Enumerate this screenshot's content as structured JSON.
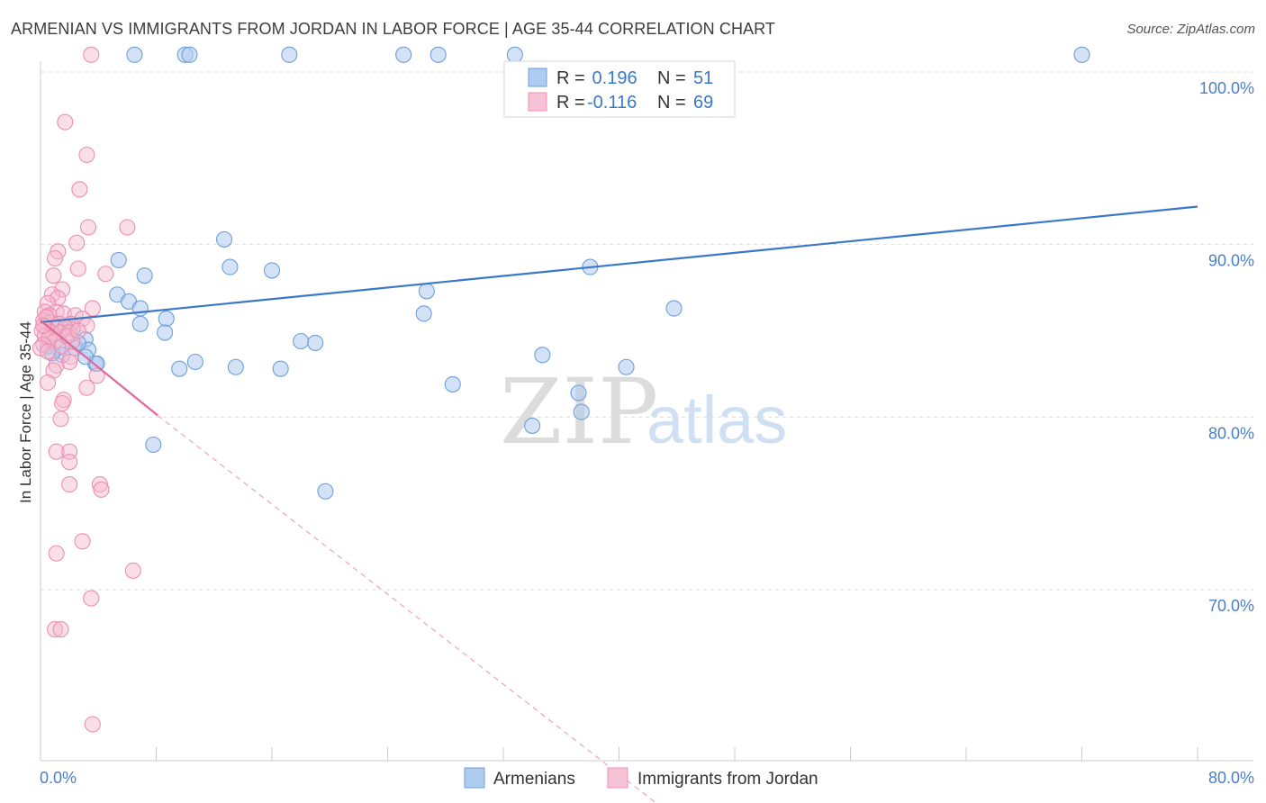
{
  "title": "ARMENIAN VS IMMIGRANTS FROM JORDAN IN LABOR FORCE | AGE 35-44 CORRELATION CHART",
  "source": "Source: ZipAtlas.com",
  "watermark": {
    "zip": "ZIP",
    "atlas": "atlas"
  },
  "colors": {
    "blue": "#3b78c8",
    "blue_fill": "#aecbf0",
    "pink": "#e0679a",
    "pink_fill": "#f6b8cd",
    "grid": "#dddddd",
    "axis_text": "#4a7fc9"
  },
  "legend": {
    "rows": [
      {
        "r_label": "R =",
        "r_value": " 0.196",
        "n_label": "N =",
        "n_value": "51"
      },
      {
        "r_label": "R =",
        "r_value": "-0.116",
        "n_label": "N =",
        "n_value": "69"
      }
    ]
  },
  "chart_data": {
    "type": "scatter",
    "title": "ARMENIAN VS IMMIGRANTS FROM JORDAN IN LABOR FORCE | AGE 35-44 CORRELATION CHART",
    "xlabel": "",
    "ylabel": "In Labor Force | Age 35-44",
    "xlim": [
      0,
      80
    ],
    "ylim": [
      60,
      100
    ],
    "x_tick_labels": [
      "0.0%",
      "80.0%"
    ],
    "y_ticks": [
      100,
      90,
      80,
      70
    ],
    "y_tick_labels": [
      "100.0%",
      "90.0%",
      "80.0%",
      "70.0%"
    ],
    "series": [
      {
        "name": "Armenians",
        "color": "#3b78c8",
        "r": 0.196,
        "n": 51,
        "trend": {
          "x": [
            0,
            80
          ],
          "y": [
            85.5,
            92.2
          ]
        },
        "points": [
          [
            6.5,
            101.0
          ],
          [
            10.0,
            101.0
          ],
          [
            10.3,
            101.0
          ],
          [
            17.2,
            101.0
          ],
          [
            25.1,
            101.0
          ],
          [
            27.5,
            101.0
          ],
          [
            32.8,
            101.0
          ],
          [
            72.0,
            101.0
          ],
          [
            12.7,
            90.3
          ],
          [
            13.1,
            88.7
          ],
          [
            5.4,
            89.1
          ],
          [
            7.2,
            88.2
          ],
          [
            16.0,
            88.5
          ],
          [
            26.7,
            87.3
          ],
          [
            38.0,
            88.7
          ],
          [
            5.3,
            87.1
          ],
          [
            6.1,
            86.7
          ],
          [
            6.9,
            86.3
          ],
          [
            6.9,
            85.4
          ],
          [
            8.7,
            85.7
          ],
          [
            8.6,
            84.9
          ],
          [
            26.5,
            86.0
          ],
          [
            43.8,
            86.3
          ],
          [
            1.0,
            85.2
          ],
          [
            1.6,
            85.1
          ],
          [
            2.2,
            85.1
          ],
          [
            3.1,
            84.5
          ],
          [
            18.0,
            84.4
          ],
          [
            19.0,
            84.3
          ],
          [
            0.5,
            84.1
          ],
          [
            1.2,
            84.0
          ],
          [
            2.4,
            84.0
          ],
          [
            3.3,
            83.9
          ],
          [
            1.5,
            83.6
          ],
          [
            3.8,
            83.1
          ],
          [
            3.9,
            83.1
          ],
          [
            3.1,
            83.5
          ],
          [
            9.6,
            82.8
          ],
          [
            10.7,
            83.2
          ],
          [
            13.5,
            82.9
          ],
          [
            16.6,
            82.8
          ],
          [
            34.7,
            83.6
          ],
          [
            40.5,
            82.9
          ],
          [
            28.5,
            81.9
          ],
          [
            37.2,
            81.4
          ],
          [
            37.4,
            80.3
          ],
          [
            34.0,
            79.5
          ],
          [
            7.8,
            78.4
          ],
          [
            19.7,
            75.7
          ],
          [
            0.8,
            83.7
          ],
          [
            2.6,
            84.3
          ]
        ]
      },
      {
        "name": "Immigrants from Jordan",
        "color": "#e0679a",
        "r": -0.116,
        "n": 69,
        "trend": {
          "x": [
            0,
            8.1
          ],
          "y": [
            85.6,
            80.1
          ]
        },
        "trend_dashed": {
          "x": [
            8.1,
            44.3
          ],
          "y": [
            80.1,
            56.5
          ]
        },
        "points": [
          [
            3.5,
            101.0
          ],
          [
            1.7,
            97.1
          ],
          [
            3.2,
            95.2
          ],
          [
            2.7,
            93.2
          ],
          [
            3.3,
            91.0
          ],
          [
            6.0,
            91.0
          ],
          [
            2.5,
            90.1
          ],
          [
            1.2,
            89.6
          ],
          [
            1.0,
            89.2
          ],
          [
            2.6,
            88.6
          ],
          [
            4.5,
            88.3
          ],
          [
            0.9,
            88.2
          ],
          [
            1.5,
            87.4
          ],
          [
            0.8,
            87.1
          ],
          [
            1.2,
            86.9
          ],
          [
            0.5,
            86.6
          ],
          [
            3.6,
            86.3
          ],
          [
            1.1,
            86.1
          ],
          [
            0.3,
            86.1
          ],
          [
            0.6,
            85.9
          ],
          [
            1.6,
            86.0
          ],
          [
            2.4,
            85.9
          ],
          [
            2.9,
            85.7
          ],
          [
            0.2,
            85.6
          ],
          [
            0.7,
            85.5
          ],
          [
            1.3,
            85.4
          ],
          [
            2.1,
            85.4
          ],
          [
            0.4,
            85.2
          ],
          [
            1.7,
            85.2
          ],
          [
            3.2,
            85.3
          ],
          [
            0.1,
            85.0
          ],
          [
            0.8,
            84.9
          ],
          [
            1.4,
            84.9
          ],
          [
            2.0,
            84.9
          ],
          [
            0.3,
            84.7
          ],
          [
            0.6,
            84.6
          ],
          [
            1.0,
            84.4
          ],
          [
            2.2,
            84.4
          ],
          [
            0.2,
            84.2
          ],
          [
            1.5,
            84.1
          ],
          [
            0.0,
            84.0
          ],
          [
            0.5,
            83.8
          ],
          [
            2.1,
            83.5
          ],
          [
            1.1,
            83.0
          ],
          [
            2.0,
            83.2
          ],
          [
            0.9,
            82.7
          ],
          [
            3.9,
            82.4
          ],
          [
            0.5,
            82.0
          ],
          [
            3.2,
            81.7
          ],
          [
            1.6,
            81.0
          ],
          [
            1.5,
            80.8
          ],
          [
            1.4,
            79.9
          ],
          [
            1.1,
            78.0
          ],
          [
            2.0,
            78.0
          ],
          [
            2.0,
            77.4
          ],
          [
            2.0,
            76.1
          ],
          [
            4.1,
            76.1
          ],
          [
            4.2,
            75.8
          ],
          [
            2.9,
            72.8
          ],
          [
            1.1,
            72.1
          ],
          [
            6.4,
            71.1
          ],
          [
            3.5,
            69.5
          ],
          [
            1.0,
            67.7
          ],
          [
            1.4,
            67.7
          ],
          [
            3.6,
            62.2
          ],
          [
            0.4,
            85.8
          ],
          [
            1.9,
            84.7
          ],
          [
            0.2,
            85.3
          ],
          [
            2.6,
            85.0
          ]
        ]
      }
    ],
    "legend": [
      "Armenians",
      "Immigrants from Jordan"
    ]
  }
}
